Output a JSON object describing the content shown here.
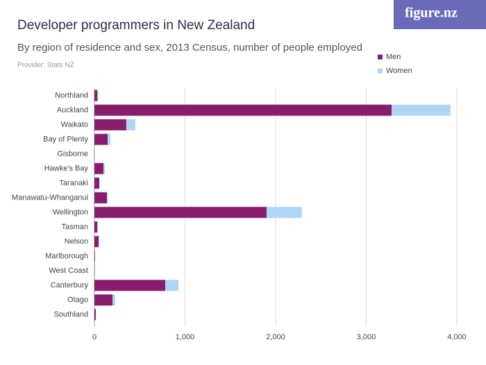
{
  "logo": "figure.nz",
  "chart_data": {
    "type": "stacked_barh",
    "title": "Developer programmers in New Zealand",
    "subtitle": "By region of residence and sex, 2013 Census, number of people employed",
    "source": "Provider: Stats NZ",
    "categories": [
      "Northland",
      "Auckland",
      "Waikato",
      "Bay of Plenty",
      "Gisborne",
      "Hawke's Bay",
      "Taranaki",
      "Manawatu-Whanganui",
      "Wellington",
      "Tasman",
      "Nelson",
      "Marlborough",
      "West Coast",
      "Canterbury",
      "Otago",
      "Southland"
    ],
    "series": [
      {
        "name": "Men",
        "color": "#8a1c6e",
        "values": [
          33,
          3280,
          352,
          146,
          3,
          100,
          54,
          138,
          1900,
          33,
          46,
          6,
          3,
          782,
          200,
          15
        ]
      },
      {
        "name": "Women",
        "color": "#afd6f7",
        "values": [
          9,
          650,
          100,
          30,
          1,
          15,
          3,
          8,
          390,
          2,
          6,
          1,
          0,
          145,
          30,
          2
        ]
      }
    ],
    "xlim": [
      0,
      4000
    ],
    "xticks": [
      0,
      {
        "value": 1000,
        "label": "1,000"
      },
      {
        "value": 2000,
        "label": "2,000"
      },
      {
        "value": 3000,
        "label": "3,000"
      },
      {
        "value": 4000,
        "label": "4,000"
      }
    ],
    "grid": true,
    "legend": "top-right"
  }
}
